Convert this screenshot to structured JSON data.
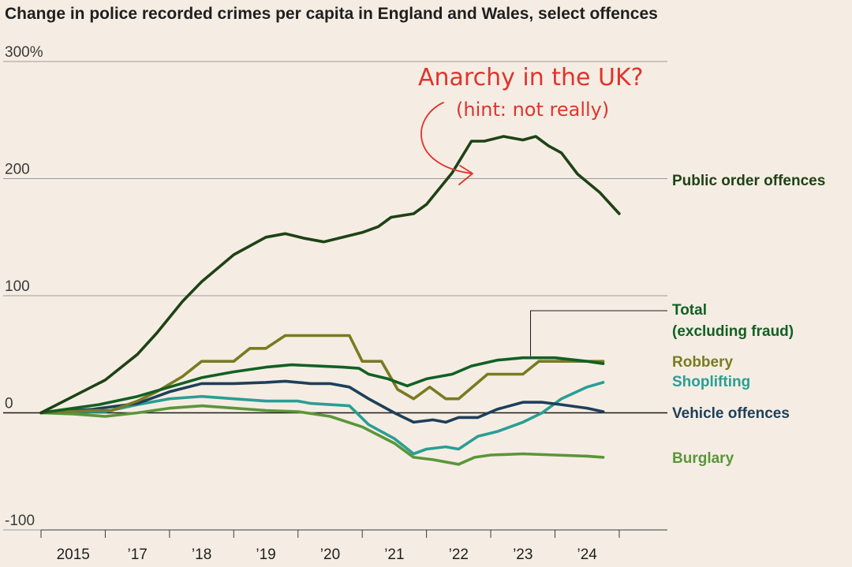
{
  "chart_data": {
    "type": "line",
    "title": "Change in police recorded crimes per capita in England and Wales, select offences",
    "xlabel": "",
    "ylabel": "",
    "ylim": [
      -100,
      300
    ],
    "xlim": [
      2014.5,
      2024.25
    ],
    "yticks": [
      {
        "value": 300,
        "label": "300%"
      },
      {
        "value": 200,
        "label": "200"
      },
      {
        "value": 100,
        "label": "100"
      },
      {
        "value": 0,
        "label": "0"
      },
      {
        "value": -100,
        "label": "-100"
      }
    ],
    "xticks": [
      {
        "value": 2015,
        "label": "2015"
      },
      {
        "value": 2016,
        "label": "’17"
      },
      {
        "value": 2017,
        "label": "’18"
      },
      {
        "value": 2018,
        "label": "’19"
      },
      {
        "value": 2019,
        "label": "’20"
      },
      {
        "value": 2020,
        "label": "’21"
      },
      {
        "value": 2021,
        "label": "’22"
      },
      {
        "value": 2022,
        "label": "’23"
      },
      {
        "value": 2023,
        "label": "’24"
      }
    ],
    "series": [
      {
        "name": "Public order offences",
        "color": "#1f4216",
        "points": [
          [
            2014.5,
            0
          ],
          [
            2015,
            14
          ],
          [
            2015.5,
            28
          ],
          [
            2016,
            50
          ],
          [
            2016.3,
            68
          ],
          [
            2016.7,
            95
          ],
          [
            2017,
            112
          ],
          [
            2017.5,
            135
          ],
          [
            2018,
            150
          ],
          [
            2018.3,
            153
          ],
          [
            2018.6,
            149
          ],
          [
            2018.9,
            146
          ],
          [
            2019.2,
            150
          ],
          [
            2019.5,
            154
          ],
          [
            2019.75,
            159
          ],
          [
            2019.95,
            167
          ],
          [
            2020.3,
            170
          ],
          [
            2020.5,
            178
          ],
          [
            2020.9,
            205
          ],
          [
            2021.2,
            232
          ],
          [
            2021.4,
            232
          ],
          [
            2021.7,
            236
          ],
          [
            2022,
            233
          ],
          [
            2022.2,
            236
          ],
          [
            2022.4,
            228
          ],
          [
            2022.6,
            222
          ],
          [
            2022.85,
            204
          ],
          [
            2023.2,
            188
          ],
          [
            2023.5,
            170
          ]
        ]
      },
      {
        "name": "Total (excluding fraud)",
        "color": "#126024",
        "points": [
          [
            2014.5,
            0
          ],
          [
            2015,
            4
          ],
          [
            2015.4,
            7
          ],
          [
            2016,
            14
          ],
          [
            2016.5,
            22
          ],
          [
            2017,
            30
          ],
          [
            2017.5,
            35
          ],
          [
            2018,
            39
          ],
          [
            2018.4,
            41
          ],
          [
            2018.8,
            40
          ],
          [
            2019.2,
            39
          ],
          [
            2019.45,
            38
          ],
          [
            2019.6,
            33
          ],
          [
            2019.9,
            29
          ],
          [
            2020.2,
            23
          ],
          [
            2020.5,
            29
          ],
          [
            2020.9,
            33
          ],
          [
            2021.2,
            40
          ],
          [
            2021.6,
            45
          ],
          [
            2022,
            47
          ],
          [
            2022.5,
            47
          ],
          [
            2023,
            44
          ],
          [
            2023.25,
            42
          ]
        ]
      },
      {
        "name": "Robbery",
        "color": "#7a7a22",
        "points": [
          [
            2014.5,
            0
          ],
          [
            2015.3,
            2
          ],
          [
            2015.6,
            2
          ],
          [
            2016,
            10
          ],
          [
            2016.3,
            18
          ],
          [
            2016.7,
            31
          ],
          [
            2017,
            44
          ],
          [
            2017.5,
            44
          ],
          [
            2017.75,
            55
          ],
          [
            2018,
            55
          ],
          [
            2018.3,
            66
          ],
          [
            2019,
            66
          ],
          [
            2019.3,
            66
          ],
          [
            2019.5,
            44
          ],
          [
            2019.8,
            44
          ],
          [
            2020.05,
            20
          ],
          [
            2020.3,
            12
          ],
          [
            2020.55,
            22
          ],
          [
            2020.8,
            12
          ],
          [
            2021,
            12
          ],
          [
            2021.45,
            33
          ],
          [
            2022,
            33
          ],
          [
            2022.25,
            44
          ],
          [
            2023.25,
            44
          ]
        ]
      },
      {
        "name": "Shoplifting",
        "color": "#2a9e94",
        "points": [
          [
            2014.5,
            0
          ],
          [
            2015,
            1
          ],
          [
            2015.5,
            1
          ],
          [
            2016,
            7
          ],
          [
            2016.5,
            12
          ],
          [
            2017,
            14
          ],
          [
            2017.5,
            12
          ],
          [
            2018,
            10
          ],
          [
            2018.5,
            10
          ],
          [
            2018.7,
            8
          ],
          [
            2019,
            7
          ],
          [
            2019.3,
            6
          ],
          [
            2019.6,
            -10
          ],
          [
            2020,
            -22
          ],
          [
            2020.3,
            -35
          ],
          [
            2020.5,
            -31
          ],
          [
            2020.8,
            -29
          ],
          [
            2021,
            -31
          ],
          [
            2021.3,
            -20
          ],
          [
            2021.6,
            -16
          ],
          [
            2022,
            -8
          ],
          [
            2022.3,
            0
          ],
          [
            2022.6,
            12
          ],
          [
            2023,
            22
          ],
          [
            2023.25,
            26
          ]
        ]
      },
      {
        "name": "Vehicle offences",
        "color": "#1e3f5a",
        "points": [
          [
            2014.5,
            0
          ],
          [
            2015,
            2
          ],
          [
            2015.3,
            3
          ],
          [
            2016,
            8
          ],
          [
            2016.5,
            18
          ],
          [
            2017,
            25
          ],
          [
            2017.5,
            25
          ],
          [
            2018,
            26
          ],
          [
            2018.3,
            27
          ],
          [
            2018.7,
            25
          ],
          [
            2019,
            25
          ],
          [
            2019.3,
            22
          ],
          [
            2019.6,
            12
          ],
          [
            2020,
            0
          ],
          [
            2020.3,
            -8
          ],
          [
            2020.6,
            -6
          ],
          [
            2020.8,
            -8
          ],
          [
            2021,
            -4
          ],
          [
            2021.3,
            -4
          ],
          [
            2021.6,
            3
          ],
          [
            2022,
            9
          ],
          [
            2022.3,
            9
          ],
          [
            2022.6,
            7
          ],
          [
            2023,
            4
          ],
          [
            2023.25,
            1
          ]
        ]
      },
      {
        "name": "Burglary",
        "color": "#5a963a",
        "points": [
          [
            2014.5,
            0
          ],
          [
            2015,
            -1
          ],
          [
            2015.5,
            -3
          ],
          [
            2016,
            0
          ],
          [
            2016.5,
            4
          ],
          [
            2017,
            6
          ],
          [
            2017.5,
            4
          ],
          [
            2018,
            2
          ],
          [
            2018.5,
            1
          ],
          [
            2019,
            -3
          ],
          [
            2019.5,
            -12
          ],
          [
            2020,
            -26
          ],
          [
            2020.3,
            -38
          ],
          [
            2020.6,
            -40
          ],
          [
            2021,
            -44
          ],
          [
            2021.25,
            -38
          ],
          [
            2021.5,
            -36
          ],
          [
            2022,
            -35
          ],
          [
            2022.5,
            -36
          ],
          [
            2023,
            -37
          ],
          [
            2023.25,
            -38
          ]
        ]
      }
    ],
    "annotations": {
      "main": "Anarchy in the UK?",
      "sub": "(hint: not really)"
    }
  }
}
